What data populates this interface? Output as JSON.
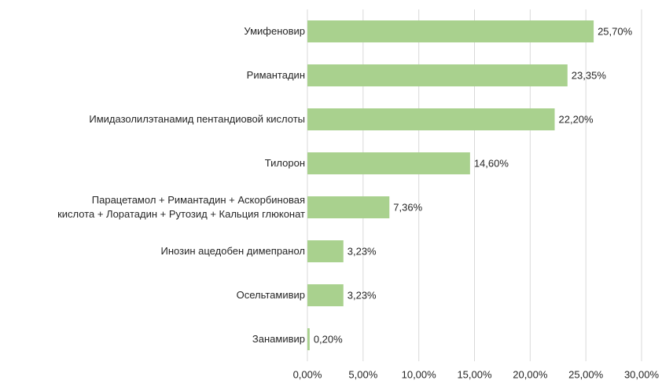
{
  "chart_data": {
    "type": "bar",
    "orientation": "horizontal",
    "categories": [
      "Умифеновир",
      "Римантадин",
      "Имидазолилэтанамид пентандиовой кислоты",
      "Тилорон",
      "Парацетамол + Римантадин + Аскорбиновая\nкислота + Лоратадин + Рутозид + Кальция глюконат",
      "Инозин ацедобен димепранол",
      "Осельтамивир",
      "Занамивир"
    ],
    "values": [
      25.7,
      23.35,
      22.2,
      14.6,
      7.36,
      3.23,
      3.23,
      0.2
    ],
    "value_labels": [
      "25,70%",
      "23,35%",
      "22,20%",
      "14,60%",
      "7,36%",
      "3,23%",
      "3,23%",
      "0,20%"
    ],
    "color": "#a9d18e",
    "xlim": [
      0,
      30
    ],
    "xticks": [
      {
        "value": 0,
        "label": "0,00%"
      },
      {
        "value": 5,
        "label": "5,00%"
      },
      {
        "value": 10,
        "label": "10,00%"
      },
      {
        "value": 15,
        "label": "15,00%"
      },
      {
        "value": 20,
        "label": "20,00%"
      },
      {
        "value": 25,
        "label": "25,00%"
      },
      {
        "value": 30,
        "label": "30,00%"
      }
    ],
    "grid": true
  }
}
